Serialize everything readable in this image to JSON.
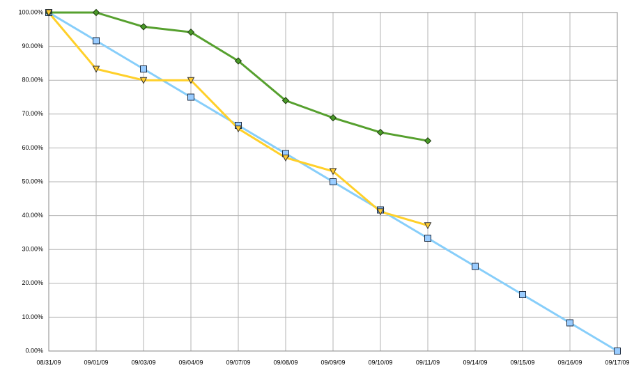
{
  "chart_data": {
    "type": "line",
    "categories": [
      "08/31/09",
      "09/01/09",
      "09/03/09",
      "09/04/09",
      "09/07/09",
      "09/08/09",
      "09/09/09",
      "09/10/09",
      "09/11/09",
      "09/14/09",
      "09/15/09",
      "09/16/09",
      "09/17/09"
    ],
    "series": [
      {
        "color": "#87cefa",
        "marker": "square",
        "marker_color": "#99ccff",
        "values": [
          100,
          91.67,
          83.33,
          75,
          66.67,
          58.33,
          50,
          41.67,
          33.33,
          25,
          16.67,
          8.33,
          0
        ]
      },
      {
        "color": "#56a02e",
        "marker": "diamond",
        "marker_color": "#4a9a28",
        "values": [
          100,
          100,
          95.8,
          94.2,
          85.7,
          74,
          68.9,
          64.6,
          62.1,
          null,
          null,
          null,
          null
        ]
      },
      {
        "color": "#ffd02a",
        "marker": "triangle-down",
        "marker_color": "#ffcc33",
        "values": [
          100,
          83.33,
          80,
          80,
          65.7,
          57.1,
          53.1,
          41.2,
          37.1,
          null,
          null,
          null,
          null
        ]
      }
    ],
    "ylim": [
      0,
      100
    ],
    "yticks": [
      {
        "value": 0,
        "label": "0.00%"
      },
      {
        "value": 10,
        "label": "10.00%"
      },
      {
        "value": 20,
        "label": "20.00%"
      },
      {
        "value": 30,
        "label": "30.00%"
      },
      {
        "value": 40,
        "label": "40.00%"
      },
      {
        "value": 50,
        "label": "50.00%"
      },
      {
        "value": 60,
        "label": "60.00%"
      },
      {
        "value": 70,
        "label": "70.00%"
      },
      {
        "value": 80,
        "label": "80.00%"
      },
      {
        "value": 90,
        "label": "90.00%"
      },
      {
        "value": 100,
        "label": "100.00%"
      }
    ],
    "grid": true
  }
}
